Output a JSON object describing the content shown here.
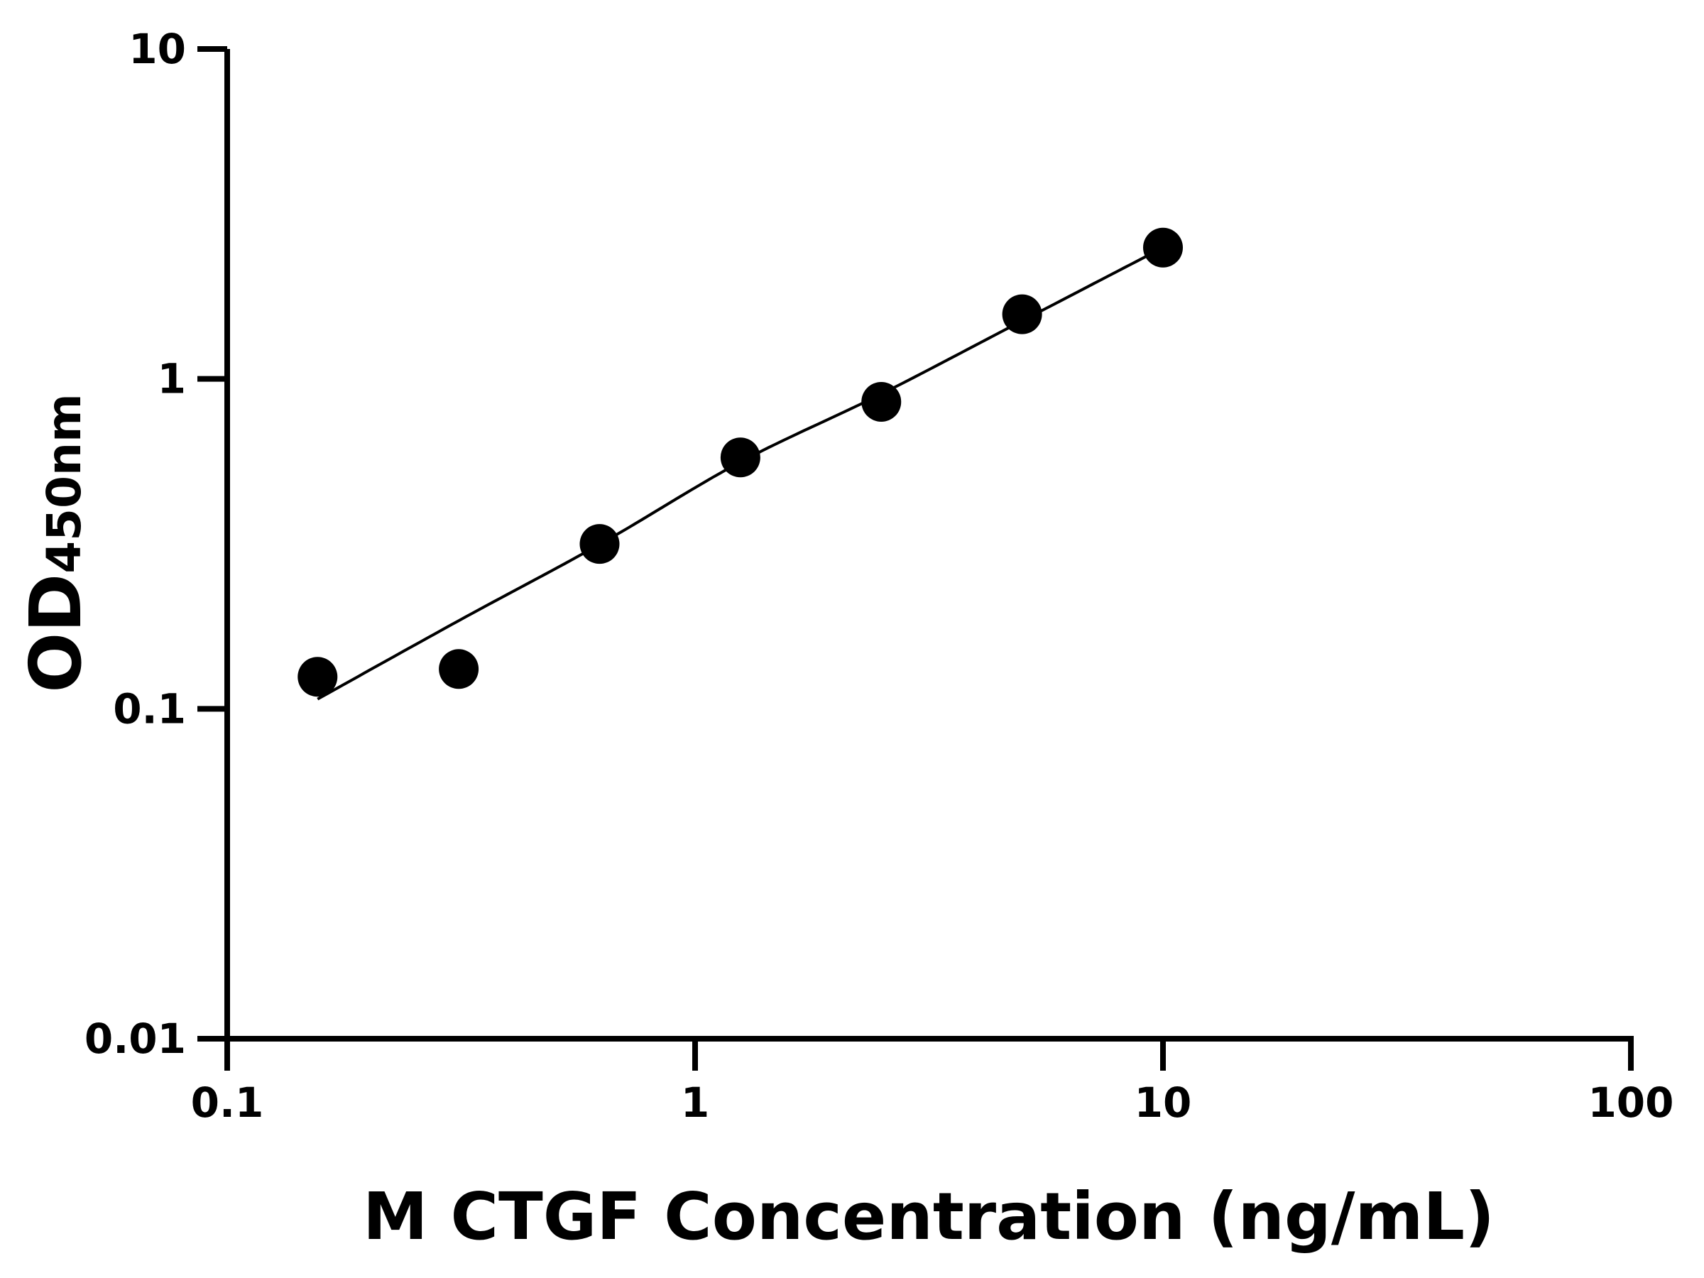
{
  "chart_data": {
    "type": "scatter",
    "title": "",
    "xlabel": "M CTGF Concentration (ng/mL)",
    "ylabel": {
      "main": "OD",
      "subscript": "450nm"
    },
    "xscale": "log",
    "yscale": "log",
    "xlim": [
      0.1,
      100
    ],
    "ylim": [
      0.01,
      10
    ],
    "xticks": [
      {
        "value": 0.1,
        "label": "0.1"
      },
      {
        "value": 1,
        "label": "1"
      },
      {
        "value": 10,
        "label": "10"
      },
      {
        "value": 100,
        "label": "100"
      }
    ],
    "yticks": [
      {
        "value": 0.01,
        "label": "0.01"
      },
      {
        "value": 0.1,
        "label": "0.1"
      },
      {
        "value": 1,
        "label": "1"
      },
      {
        "value": 10,
        "label": "10"
      }
    ],
    "grid": false,
    "legend": "none",
    "points": {
      "x": [
        0.156,
        0.3125,
        0.625,
        1.25,
        2.5,
        5,
        10
      ],
      "y": [
        0.125,
        0.132,
        0.316,
        0.578,
        0.852,
        1.57,
        2.5
      ]
    },
    "fit_curve": {
      "x": [
        0.156,
        0.3125,
        0.625,
        1.25,
        2.5,
        5,
        10
      ],
      "y": [
        0.107,
        0.185,
        0.315,
        0.56,
        0.9,
        1.5,
        2.5
      ]
    },
    "colors": {
      "points": "#000000",
      "line": "#000000",
      "axes": "#000000"
    }
  }
}
